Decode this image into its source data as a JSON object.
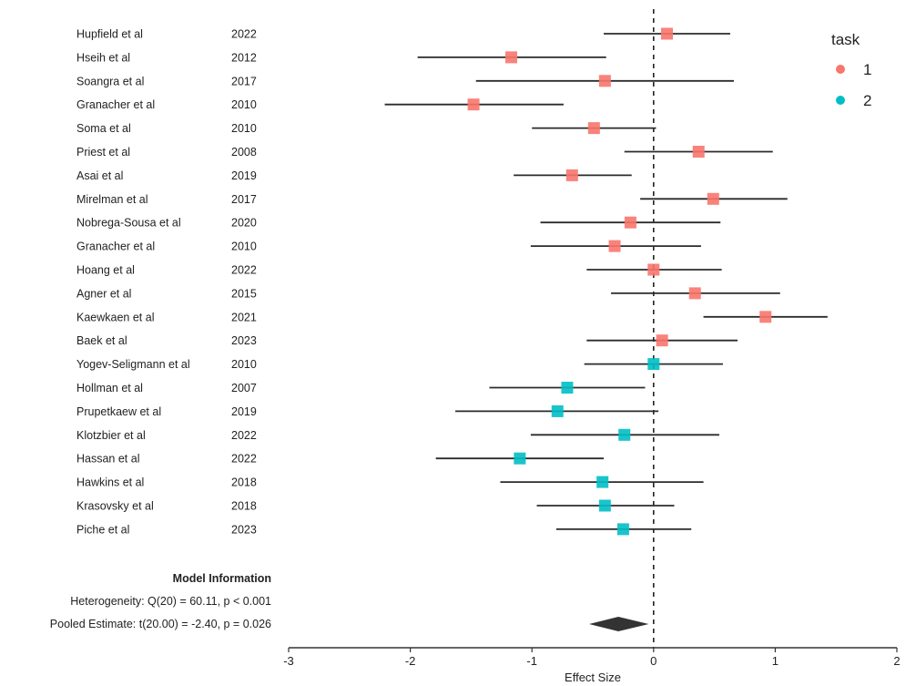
{
  "chart_data": {
    "type": "forest",
    "title": "",
    "xlabel": "Effect Size",
    "ylabel": "",
    "xlim": [
      -3,
      2
    ],
    "x_ticks": [
      -3,
      -2,
      -1,
      0,
      1,
      2
    ],
    "x_tick_labels": [
      "-3",
      "-2",
      "-1",
      "0",
      "1",
      "2"
    ],
    "reference_line": 0,
    "grid": false,
    "legend": {
      "title": "task",
      "position": "top-right",
      "entries": [
        {
          "label": "1",
          "color": "#F8766D"
        },
        {
          "label": "2",
          "color": "#00BFC4"
        }
      ]
    },
    "studies": [
      {
        "study": "Hupfield et al",
        "year": "2022",
        "task": "1",
        "estimate": 0.11,
        "ci_low": -0.41,
        "ci_high": 0.63
      },
      {
        "study": "Hseih et al",
        "year": "2012",
        "task": "1",
        "estimate": -1.17,
        "ci_low": -1.94,
        "ci_high": -0.39
      },
      {
        "study": "Soangra et al",
        "year": "2017",
        "task": "1",
        "estimate": -0.4,
        "ci_low": -1.46,
        "ci_high": 0.66
      },
      {
        "study": "Granacher et al",
        "year": "2010",
        "task": "1",
        "estimate": -1.48,
        "ci_low": -2.21,
        "ci_high": -0.74
      },
      {
        "study": "Soma et al",
        "year": "2010",
        "task": "1",
        "estimate": -0.49,
        "ci_low": -1.0,
        "ci_high": 0.02
      },
      {
        "study": "Priest et al",
        "year": "2008",
        "task": "1",
        "estimate": 0.37,
        "ci_low": -0.24,
        "ci_high": 0.98
      },
      {
        "study": "Asai et al",
        "year": "2019",
        "task": "1",
        "estimate": -0.67,
        "ci_low": -1.15,
        "ci_high": -0.18
      },
      {
        "study": "Mirelman et al",
        "year": "2017",
        "task": "1",
        "estimate": 0.49,
        "ci_low": -0.11,
        "ci_high": 1.1
      },
      {
        "study": "Nobrega-Sousa et al",
        "year": "2020",
        "task": "1",
        "estimate": -0.19,
        "ci_low": -0.93,
        "ci_high": 0.55
      },
      {
        "study": "Granacher et al",
        "year": "2010",
        "task": "1",
        "estimate": -0.32,
        "ci_low": -1.01,
        "ci_high": 0.39
      },
      {
        "study": "Hoang et al",
        "year": "2022",
        "task": "1",
        "estimate": 0.0,
        "ci_low": -0.55,
        "ci_high": 0.56
      },
      {
        "study": "Agner et al",
        "year": "2015",
        "task": "1",
        "estimate": 0.34,
        "ci_low": -0.35,
        "ci_high": 1.04
      },
      {
        "study": "Kaewkaen et al",
        "year": "2021",
        "task": "1",
        "estimate": 0.92,
        "ci_low": 0.41,
        "ci_high": 1.43
      },
      {
        "study": "Baek et al",
        "year": "2023",
        "task": "1",
        "estimate": 0.07,
        "ci_low": -0.55,
        "ci_high": 0.69
      },
      {
        "study": "Yogev-Seligmann et al",
        "year": "2010",
        "task": "2",
        "estimate": 0.0,
        "ci_low": -0.57,
        "ci_high": 0.57
      },
      {
        "study": "Hollman et al",
        "year": "2007",
        "task": "2",
        "estimate": -0.71,
        "ci_low": -1.35,
        "ci_high": -0.07
      },
      {
        "study": "Prupetkaew et al",
        "year": "2019",
        "task": "2",
        "estimate": -0.79,
        "ci_low": -1.63,
        "ci_high": 0.04
      },
      {
        "study": "Klotzbier et al",
        "year": "2022",
        "task": "2",
        "estimate": -0.24,
        "ci_low": -1.01,
        "ci_high": 0.54
      },
      {
        "study": "Hassan et al",
        "year": "2022",
        "task": "2",
        "estimate": -1.1,
        "ci_low": -1.79,
        "ci_high": -0.41
      },
      {
        "study": "Hawkins et al",
        "year": "2018",
        "task": "2",
        "estimate": -0.42,
        "ci_low": -1.26,
        "ci_high": 0.41
      },
      {
        "study": "Krasovsky et al",
        "year": "2018",
        "task": "2",
        "estimate": -0.4,
        "ci_low": -0.96,
        "ci_high": 0.17
      },
      {
        "study": "Piche et al",
        "year": "2023",
        "task": "2",
        "estimate": -0.25,
        "ci_low": -0.8,
        "ci_high": 0.31
      }
    ],
    "pooled": {
      "estimate": -0.29,
      "ci_low": -0.53,
      "ci_high": -0.04,
      "color": "#333333"
    },
    "model_info": {
      "title": "Model Information",
      "heterogeneity": "Heterogeneity: Q(20) = 60.11, p < 0.001",
      "pooled_estimate": "Pooled Estimate: t(20.00) = -2.40, p = 0.026"
    }
  }
}
